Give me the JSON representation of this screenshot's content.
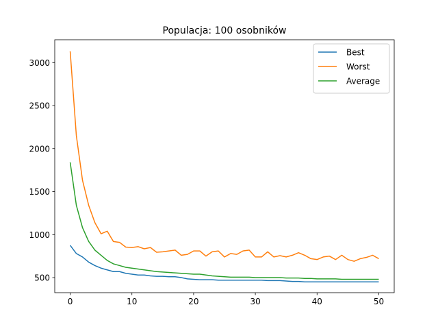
{
  "chart_data": {
    "type": "line",
    "title": "Populacja: 100 osobników",
    "xlabel": "",
    "ylabel": "",
    "xlim": [
      -2.5,
      52.5
    ],
    "ylim": [
      325,
      3265
    ],
    "xticks": [
      0,
      10,
      20,
      30,
      40,
      50
    ],
    "yticks": [
      500,
      1000,
      1500,
      2000,
      2500,
      3000
    ],
    "grid": false,
    "legend_position": "top-right",
    "x": [
      0,
      1,
      2,
      3,
      4,
      5,
      6,
      7,
      8,
      9,
      10,
      11,
      12,
      13,
      14,
      15,
      16,
      17,
      18,
      19,
      20,
      21,
      22,
      23,
      24,
      25,
      26,
      27,
      28,
      29,
      30,
      31,
      32,
      33,
      34,
      35,
      36,
      37,
      38,
      39,
      40,
      41,
      42,
      43,
      44,
      45,
      46,
      47,
      48,
      49,
      50
    ],
    "series": [
      {
        "name": "Best",
        "color": "#1f77b4",
        "values": [
          875,
          780,
          740,
          680,
          640,
          610,
          590,
          570,
          570,
          550,
          540,
          530,
          530,
          520,
          515,
          515,
          510,
          510,
          500,
          485,
          480,
          475,
          475,
          475,
          470,
          470,
          470,
          470,
          470,
          470,
          470,
          470,
          465,
          465,
          465,
          460,
          455,
          455,
          450,
          450,
          450,
          450,
          450,
          450,
          450,
          450,
          450,
          450,
          450,
          450,
          450
        ]
      },
      {
        "name": "Worst",
        "color": "#ff7f0e",
        "values": [
          3130,
          2150,
          1630,
          1340,
          1140,
          1010,
          1040,
          920,
          910,
          855,
          850,
          860,
          835,
          850,
          795,
          800,
          810,
          820,
          760,
          770,
          810,
          810,
          750,
          800,
          810,
          740,
          780,
          770,
          810,
          820,
          740,
          740,
          800,
          740,
          755,
          740,
          760,
          790,
          760,
          720,
          710,
          740,
          750,
          710,
          760,
          710,
          690,
          720,
          735,
          760,
          720
        ]
      },
      {
        "name": "Average",
        "color": "#2ca02c",
        "values": [
          1840,
          1340,
          1080,
          920,
          820,
          760,
          700,
          660,
          640,
          620,
          610,
          600,
          590,
          580,
          570,
          565,
          560,
          555,
          550,
          545,
          540,
          540,
          530,
          520,
          515,
          510,
          505,
          505,
          505,
          505,
          500,
          500,
          500,
          500,
          500,
          495,
          495,
          495,
          490,
          490,
          485,
          485,
          485,
          485,
          480,
          480,
          480,
          480,
          480,
          480,
          480
        ]
      }
    ]
  }
}
